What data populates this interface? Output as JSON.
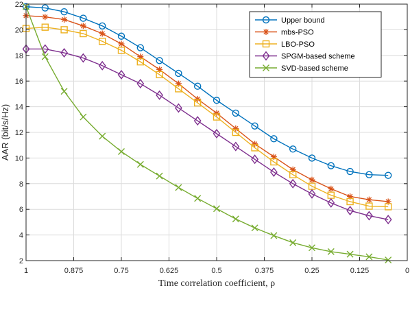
{
  "chart_data": {
    "type": "line",
    "xlabel": "Time correlation coefficient, ρ",
    "ylabel": "AAR (bit/s/Hz)",
    "xlim": [
      1,
      0
    ],
    "ylim": [
      2,
      22
    ],
    "x_reversed": true,
    "grid": true,
    "legend_position": "top-right",
    "x_ticks": [
      1,
      0.875,
      0.75,
      0.625,
      0.5,
      0.375,
      0.25,
      0.125,
      0
    ],
    "x_tick_labels": [
      "1",
      "0.875",
      "0.75",
      "0.625",
      "0.5",
      "0.375",
      "0.25",
      "0.125",
      "0"
    ],
    "y_ticks": [
      2,
      4,
      6,
      8,
      10,
      12,
      14,
      16,
      18,
      20,
      22
    ],
    "y_tick_labels": [
      "2",
      "4",
      "6",
      "8",
      "10",
      "12",
      "14",
      "16",
      "18",
      "20",
      "22"
    ],
    "x": [
      1,
      0.975,
      0.95,
      0.925,
      0.9,
      0.875,
      0.85,
      0.825,
      0.8,
      0.775,
      0.75,
      0.725,
      0.7,
      0.675,
      0.65,
      0.625,
      0.6,
      0.575,
      0.55,
      0.525,
      0.5,
      0.475,
      0.45,
      0.425,
      0.4,
      0.375,
      0.35,
      0.325,
      0.3,
      0.275,
      0.25,
      0.225,
      0.2,
      0.175,
      0.15,
      0.125,
      0.1,
      0.075,
      0.05,
      0.025,
      0
    ],
    "series": [
      {
        "name": "Upper bound",
        "color": "#0072BD",
        "marker": "circle",
        "x": [
          1,
          0.95,
          0.9,
          0.85,
          0.8,
          0.75,
          0.7,
          0.65,
          0.6,
          0.55,
          0.5,
          0.45,
          0.4,
          0.35,
          0.3,
          0.25,
          0.2,
          0.15,
          0.1,
          0.05
        ],
        "values": [
          21.8,
          21.7,
          21.4,
          20.9,
          20.3,
          19.5,
          18.6,
          17.6,
          16.6,
          15.6,
          14.5,
          13.5,
          12.5,
          11.5,
          10.7,
          10.0,
          9.4,
          8.95,
          8.7,
          8.65
        ]
      },
      {
        "name": "mbs-PSO",
        "color": "#D95319",
        "marker": "asterisk",
        "x": [
          1,
          0.95,
          0.9,
          0.85,
          0.8,
          0.75,
          0.7,
          0.65,
          0.6,
          0.55,
          0.5,
          0.45,
          0.4,
          0.35,
          0.3,
          0.25,
          0.2,
          0.15,
          0.1,
          0.05
        ],
        "values": [
          21.1,
          21.0,
          20.8,
          20.3,
          19.7,
          18.9,
          17.9,
          16.9,
          15.8,
          14.6,
          13.5,
          12.3,
          11.1,
          10.1,
          9.1,
          8.3,
          7.6,
          7.0,
          6.75,
          6.6
        ]
      },
      {
        "name": "LBO-PSO",
        "color": "#EDB120",
        "marker": "square",
        "x": [
          1,
          0.95,
          0.9,
          0.85,
          0.8,
          0.75,
          0.7,
          0.65,
          0.6,
          0.55,
          0.5,
          0.45,
          0.4,
          0.35,
          0.3,
          0.25,
          0.2,
          0.15,
          0.1,
          0.05
        ],
        "values": [
          20.1,
          20.2,
          20.0,
          19.7,
          19.1,
          18.4,
          17.5,
          16.5,
          15.4,
          14.3,
          13.2,
          12.0,
          10.8,
          9.7,
          8.7,
          7.8,
          7.1,
          6.6,
          6.25,
          6.2
        ]
      },
      {
        "name": "SPGM-based scheme",
        "color": "#7E2F8E",
        "marker": "diamond",
        "x": [
          1,
          0.95,
          0.9,
          0.85,
          0.8,
          0.75,
          0.7,
          0.65,
          0.6,
          0.55,
          0.5,
          0.45,
          0.4,
          0.35,
          0.3,
          0.25,
          0.2,
          0.15,
          0.1,
          0.05
        ],
        "values": [
          18.5,
          18.5,
          18.2,
          17.8,
          17.2,
          16.5,
          15.8,
          14.9,
          13.9,
          12.9,
          11.9,
          10.9,
          9.9,
          8.9,
          8.0,
          7.2,
          6.5,
          5.9,
          5.5,
          5.2
        ]
      },
      {
        "name": "SVD-based scheme",
        "color": "#77AC30",
        "marker": "x",
        "x": [
          1,
          0.95,
          0.9,
          0.85,
          0.8,
          0.75,
          0.7,
          0.65,
          0.6,
          0.55,
          0.5,
          0.45,
          0.4,
          0.35,
          0.3,
          0.25,
          0.2,
          0.15,
          0.1,
          0.05
        ],
        "values": [
          21.8,
          17.9,
          15.2,
          13.2,
          11.7,
          10.5,
          9.5,
          8.6,
          7.7,
          6.85,
          6.05,
          5.25,
          4.55,
          3.95,
          3.4,
          3.0,
          2.7,
          2.5,
          2.3,
          2.05
        ]
      }
    ]
  }
}
